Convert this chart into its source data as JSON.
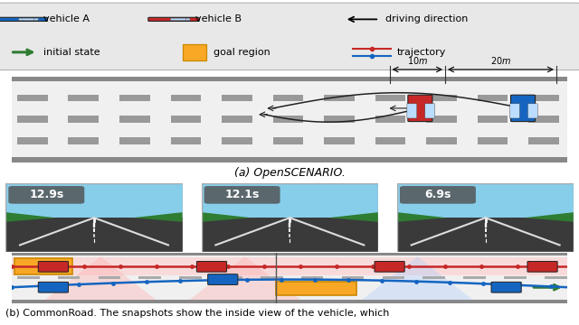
{
  "fig_width": 6.4,
  "fig_height": 3.6,
  "dpi": 100,
  "bg_color": "#ffffff",
  "legend_bg": "#e8e8e8",
  "caption_a": "(a) OpenSCENARIO.",
  "caption_b": "(b) CommonRoad. The snapshots show the inside view of the vehicle, which",
  "legend_items": [
    {
      "label": "vehicle A",
      "color": "#1565c0"
    },
    {
      "label": "vehicle B",
      "color": "#c62828"
    },
    {
      "label": "driving direction"
    },
    {
      "label": "initial state",
      "color": "#2e7d32"
    },
    {
      "label": "goal region",
      "color": "#f9a825"
    },
    {
      "label": "trajectory"
    }
  ],
  "dim10": "10m",
  "dim20": "20m",
  "snapshot_times": [
    "12.9s",
    "12.1s",
    "6.9s"
  ],
  "snapshot_sky": "#87ceeb",
  "cr_traj_blue": "#1565c0",
  "cr_traj_red": "#c62828",
  "cr_goal_yellow": "#f9a825",
  "cr_vehicle_blue": "#1565c0",
  "cr_vehicle_red": "#c62828"
}
